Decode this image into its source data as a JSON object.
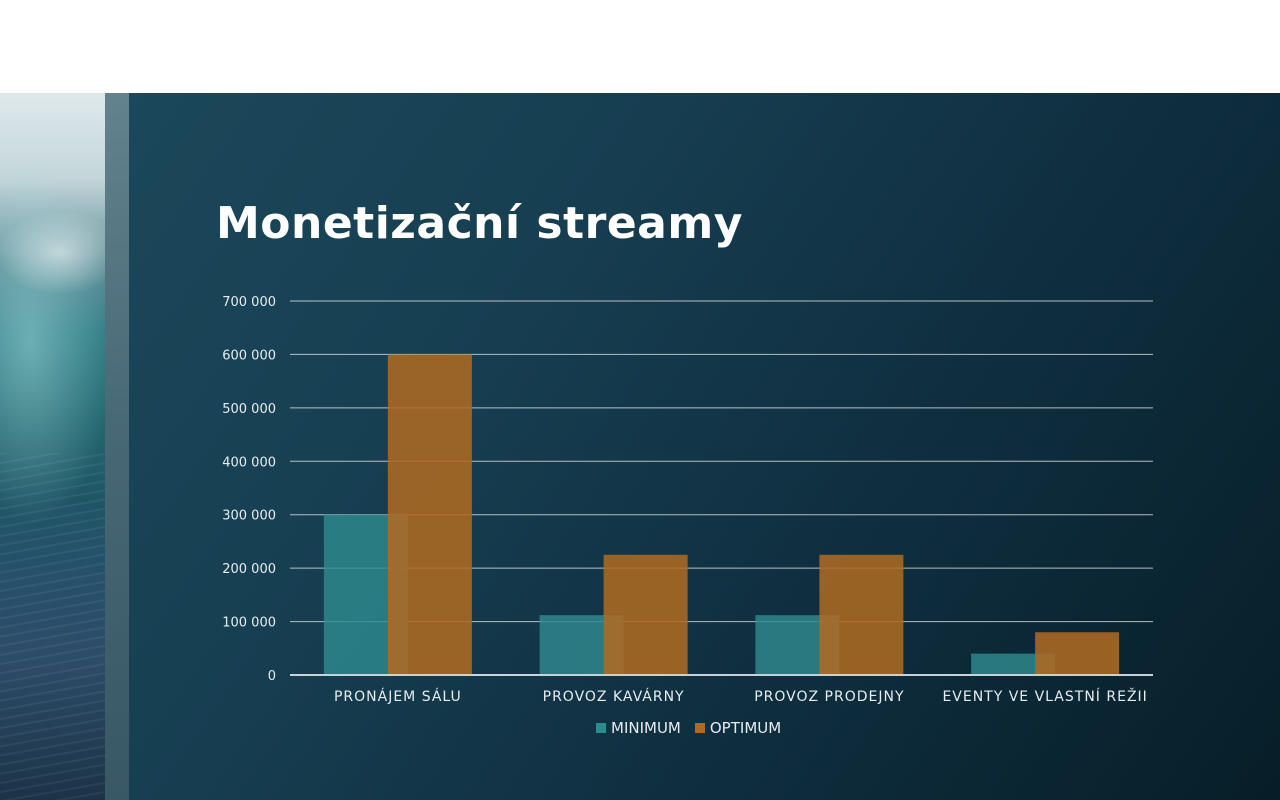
{
  "slide": {
    "title": "Monetizační streamy"
  },
  "colors": {
    "minimum": "#2e8a8f",
    "optimum": "#ad6a22",
    "gridline": "#cfd8dc",
    "axis_text": "#e6edf0"
  },
  "chart_data": {
    "type": "bar",
    "title": "",
    "xlabel": "",
    "ylabel": "",
    "ylim": [
      0,
      700000
    ],
    "yticks": [
      0,
      100000,
      200000,
      300000,
      400000,
      500000,
      600000,
      700000
    ],
    "ytick_labels": [
      "0",
      "100 000",
      "200 000",
      "300 000",
      "400 000",
      "500 000",
      "600 000",
      "700 000"
    ],
    "categories": [
      "PRONÁJEM SÁLU",
      "PROVOZ KAVÁRNY",
      "PROVOZ PRODEJNY",
      "EVENTY VE VLASTNÍ REŽII"
    ],
    "series": [
      {
        "name": "MINIMUM",
        "values": [
          300000,
          112000,
          112000,
          40000
        ]
      },
      {
        "name": "OPTIMUM",
        "values": [
          600000,
          225000,
          225000,
          80000
        ]
      }
    ],
    "grid": true,
    "legend_position": "bottom"
  }
}
